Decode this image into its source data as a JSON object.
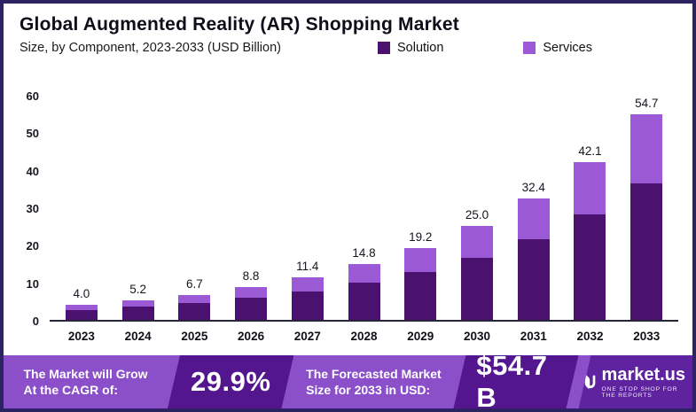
{
  "header": {
    "title": "Global Augmented Reality (AR) Shopping Market",
    "subtitle": "Size, by Component, 2023-2033 (USD Billion)"
  },
  "legend": {
    "solution": "Solution",
    "services": "Services"
  },
  "chart_data": {
    "type": "bar",
    "stacked": true,
    "title": "Global Augmented Reality (AR) Shopping Market",
    "subtitle": "Size, by Component, 2023-2033 (USD Billion)",
    "xlabel": "",
    "ylabel": "",
    "ylim": [
      0,
      60
    ],
    "yticks": [
      0,
      10,
      20,
      30,
      40,
      50,
      60
    ],
    "grid": false,
    "legend_position": "top-right",
    "categories": [
      "2023",
      "2024",
      "2025",
      "2026",
      "2027",
      "2028",
      "2029",
      "2030",
      "2031",
      "2032",
      "2033"
    ],
    "series": [
      {
        "name": "Solution",
        "color": "#4b116f",
        "values": [
          2.7,
          3.5,
          4.5,
          5.9,
          7.6,
          9.9,
          12.8,
          16.6,
          21.6,
          28.0,
          36.4
        ]
      },
      {
        "name": "Services",
        "color": "#9b59d6",
        "values": [
          1.3,
          1.7,
          2.2,
          2.9,
          3.8,
          4.9,
          6.4,
          8.4,
          10.8,
          14.1,
          18.3
        ]
      }
    ],
    "totals": [
      4.0,
      5.2,
      6.7,
      8.8,
      11.4,
      14.8,
      19.2,
      25.0,
      32.4,
      42.1,
      54.7
    ],
    "total_labels": [
      "4.0",
      "5.2",
      "6.7",
      "8.8",
      "11.4",
      "14.8",
      "19.2",
      "25.0",
      "32.4",
      "42.1",
      "54.7"
    ]
  },
  "footer": {
    "cagr_label_line1": "The Market will Grow",
    "cagr_label_line2": "At the CAGR of:",
    "cagr_value": "29.9%",
    "forecast_label_line1": "The Forecasted Market",
    "forecast_label_line2": "Size for 2033 in USD:",
    "forecast_value": "$54.7 B",
    "brand_name": "market.us",
    "brand_tagline": "ONE STOP SHOP FOR THE REPORTS"
  },
  "colors": {
    "solution": "#4b116f",
    "services": "#9b59d6",
    "footer_bg": "#8a4fc9",
    "footer_dark": "#54168f",
    "border": "#2b2362"
  }
}
